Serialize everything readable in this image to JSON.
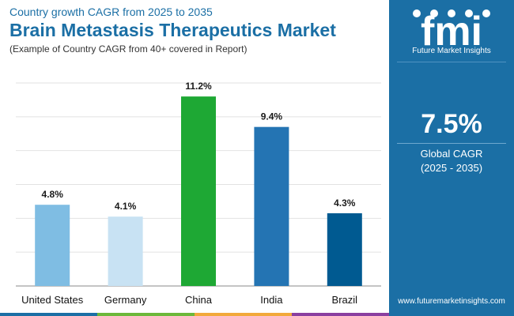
{
  "header": {
    "subtitle": "Country growth CAGR from 2025 to 2035",
    "title": "Brain Metastasis Therapeutics Market",
    "note": "(Example of Country CAGR from 40+ covered in Report)"
  },
  "side_panel": {
    "logo_text": "Future Market Insights",
    "logo_icon": "fmi-logo-icon",
    "global_value": "7.5%",
    "global_label": "Global CAGR",
    "global_period": "(2025 - 2035)",
    "website": "www.futuremarketinsights.com",
    "background_color": "#1b6fa5"
  },
  "footer_strip_colors": [
    "#1b6fa5",
    "#6cb83a",
    "#f2a93b",
    "#8a3fa0"
  ],
  "chart_data": {
    "type": "bar",
    "categories": [
      "United States",
      "Germany",
      "China",
      "India",
      "Brazil"
    ],
    "values": [
      4.8,
      4.1,
      11.2,
      9.4,
      4.3
    ],
    "value_labels": [
      "4.8%",
      "4.1%",
      "11.2%",
      "9.4%",
      "4.3%"
    ],
    "colors": [
      "#7fbde3",
      "#c8e2f3",
      "#1ea834",
      "#2474b3",
      "#005a91"
    ],
    "ylim": [
      0,
      12
    ],
    "grid": true
  }
}
